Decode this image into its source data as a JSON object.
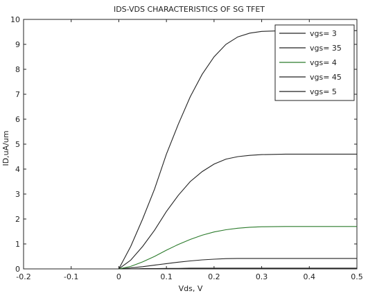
{
  "chart_data": {
    "type": "line",
    "title": "IDS-VDS CHARACTERISTICS OF SG TFET",
    "xlabel": "Vds, V",
    "ylabel": "ID,uA/um",
    "xlim": [
      -0.2,
      0.5
    ],
    "ylim": [
      0,
      10
    ],
    "xticks": [
      -0.2,
      -0.1,
      0,
      0.1,
      0.2,
      0.3,
      0.4,
      0.5
    ],
    "xtick_labels": [
      "-0.2",
      "-0.1",
      "0",
      "0.1",
      "0.2",
      "0.3",
      "0.4",
      "0.5"
    ],
    "yticks": [
      0,
      1,
      2,
      3,
      4,
      5,
      6,
      7,
      8,
      9,
      10
    ],
    "ytick_labels": [
      "0",
      "1",
      "2",
      "3",
      "4",
      "5",
      "6",
      "7",
      "8",
      "9",
      "10"
    ],
    "grid": false,
    "legend_position": "top-right",
    "x": [
      -0.2,
      -0.1,
      0,
      0.025,
      0.05,
      0.075,
      0.1,
      0.125,
      0.15,
      0.175,
      0.2,
      0.225,
      0.25,
      0.275,
      0.3,
      0.35,
      0.4,
      0.45,
      0.5
    ],
    "series": [
      {
        "name": "vgs= 3",
        "color": "#222222",
        "values": [
          0,
          0,
          0,
          0.0,
          0.01,
          0.01,
          0.02,
          0.02,
          0.03,
          0.03,
          0.03,
          0.03,
          0.03,
          0.03,
          0.03,
          0.03,
          0.03,
          0.03,
          0.03
        ]
      },
      {
        "name": "vgs= 35",
        "color": "#222222",
        "values": [
          0,
          0,
          0,
          0.04,
          0.09,
          0.15,
          0.21,
          0.27,
          0.32,
          0.36,
          0.39,
          0.41,
          0.42,
          0.42,
          0.42,
          0.42,
          0.42,
          0.42,
          0.42
        ]
      },
      {
        "name": "vgs= 4",
        "color": "#2a7a2a",
        "values": [
          0,
          0,
          0,
          0.1,
          0.28,
          0.5,
          0.75,
          0.98,
          1.18,
          1.35,
          1.48,
          1.57,
          1.63,
          1.67,
          1.69,
          1.7,
          1.7,
          1.7,
          1.7
        ]
      },
      {
        "name": "vgs= 45",
        "color": "#222222",
        "values": [
          0,
          0,
          0,
          0.35,
          0.9,
          1.55,
          2.3,
          2.95,
          3.5,
          3.9,
          4.2,
          4.4,
          4.5,
          4.55,
          4.58,
          4.6,
          4.6,
          4.6,
          4.6
        ]
      },
      {
        "name": "vgs= 5",
        "color": "#222222",
        "values": [
          0,
          0,
          0,
          0.9,
          2.0,
          3.2,
          4.6,
          5.8,
          6.9,
          7.8,
          8.5,
          9.0,
          9.3,
          9.45,
          9.52,
          9.55,
          9.55,
          9.55,
          9.55
        ]
      }
    ]
  }
}
